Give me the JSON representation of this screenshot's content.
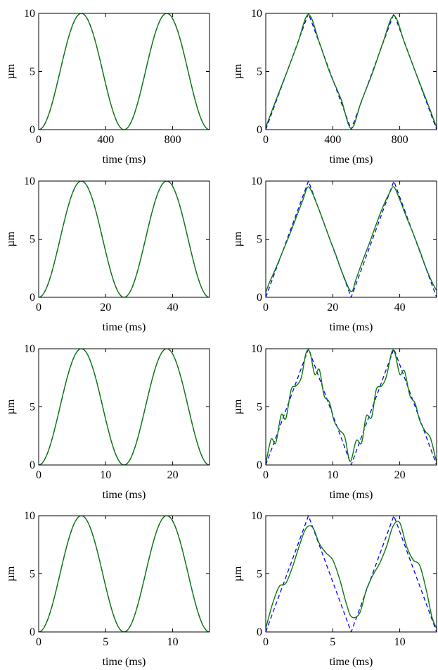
{
  "figure": {
    "colors": {
      "reference": "#0000ff",
      "response": "#0a7a0a",
      "axes": "#000000"
    }
  },
  "chart_data": [
    {
      "type": "line",
      "panel": "row1-left",
      "waveform": "cosine",
      "xlabel": "time (ms)",
      "ylabel": "µm",
      "xlim": [
        0,
        1020
      ],
      "ylim": [
        0,
        10
      ],
      "xticks": [
        0,
        400,
        800
      ],
      "yticks": [
        0,
        5,
        10
      ],
      "period": 510,
      "series": [
        {
          "style": "dashed-blue",
          "x": [
            0,
            127.5,
            255,
            382.5,
            510,
            637.5,
            765,
            892.5,
            1020
          ],
          "y": [
            0,
            5,
            10,
            5,
            0,
            5,
            10,
            5,
            0
          ]
        },
        {
          "style": "solid-green",
          "x": [
            0,
            127.5,
            255,
            382.5,
            510,
            637.5,
            765,
            892.5,
            1020
          ],
          "y": [
            0,
            5,
            10,
            5,
            0,
            5,
            10,
            5,
            0
          ]
        }
      ]
    },
    {
      "type": "line",
      "panel": "row1-right",
      "waveform": "triangle",
      "xlabel": "time (ms)",
      "ylabel": "µm",
      "xlim": [
        0,
        1020
      ],
      "ylim": [
        0,
        10
      ],
      "xticks": [
        0,
        400,
        800
      ],
      "yticks": [
        0,
        5,
        10
      ],
      "period": 510,
      "series": [
        {
          "style": "dashed-blue",
          "x": [
            0,
            255,
            510,
            765,
            1020
          ],
          "y": [
            0,
            10,
            0,
            10,
            0
          ]
        },
        {
          "style": "solid-green",
          "x": [
            0,
            60,
            130,
            190,
            255,
            320,
            380,
            450,
            510,
            570,
            640,
            700,
            765,
            830,
            890,
            960,
            1020
          ],
          "y": [
            0.2,
            2.5,
            5.1,
            7.4,
            9.9,
            7.5,
            5.0,
            2.6,
            0.1,
            2.4,
            5.0,
            7.5,
            9.8,
            7.4,
            5.1,
            2.5,
            0.2
          ]
        }
      ]
    },
    {
      "type": "line",
      "panel": "row2-left",
      "waveform": "cosine",
      "xlabel": "time (ms)",
      "ylabel": "µm",
      "xlim": [
        0,
        51
      ],
      "ylim": [
        0,
        10
      ],
      "xticks": [
        0,
        20,
        40
      ],
      "yticks": [
        0,
        5,
        10
      ],
      "period": 25.5,
      "series": [
        {
          "style": "dashed-blue",
          "x": [
            0,
            6.4,
            12.75,
            19.1,
            25.5,
            31.9,
            38.25,
            44.6,
            51
          ],
          "y": [
            0,
            5,
            10,
            5,
            0,
            5,
            10,
            5,
            0
          ]
        },
        {
          "style": "solid-green",
          "x": [
            0,
            6.4,
            12.75,
            19.1,
            25.5,
            31.9,
            38.25,
            44.6,
            51
          ],
          "y": [
            0,
            5,
            10,
            5,
            0,
            5,
            10,
            5,
            0
          ]
        }
      ]
    },
    {
      "type": "line",
      "panel": "row2-right",
      "waveform": "triangle",
      "xlabel": "time (ms)",
      "ylabel": "µm",
      "xlim": [
        0,
        51
      ],
      "ylim": [
        0,
        10
      ],
      "xticks": [
        0,
        20,
        40
      ],
      "yticks": [
        0,
        5,
        10
      ],
      "period": 25.5,
      "series": [
        {
          "style": "dashed-blue",
          "x": [
            0,
            12.75,
            25.5,
            38.25,
            51
          ],
          "y": [
            0,
            10,
            0,
            10,
            0
          ]
        },
        {
          "style": "solid-green",
          "x": [
            0,
            1,
            3,
            5,
            7,
            9,
            11,
            12.75,
            15,
            17,
            19,
            21,
            23,
            25.5,
            27,
            29,
            31,
            33,
            35,
            37,
            38.25,
            40,
            42,
            44,
            46,
            48,
            50,
            51
          ],
          "y": [
            0.4,
            1.2,
            2.5,
            3.9,
            5.3,
            6.8,
            8.3,
            9.5,
            8.2,
            6.7,
            5.1,
            3.6,
            2.0,
            0.5,
            1.6,
            3.2,
            4.7,
            6.3,
            7.8,
            9.0,
            9.5,
            8.4,
            6.9,
            5.5,
            4.0,
            2.4,
            1.1,
            0.6
          ]
        }
      ]
    },
    {
      "type": "line",
      "panel": "row3-left",
      "waveform": "cosine",
      "xlabel": "time (ms)",
      "ylabel": "µm",
      "xlim": [
        0,
        25.5
      ],
      "ylim": [
        0,
        10
      ],
      "xticks": [
        0,
        10,
        20
      ],
      "yticks": [
        0,
        5,
        10
      ],
      "period": 12.75,
      "series": [
        {
          "style": "dashed-blue",
          "x": [
            0,
            3.2,
            6.375,
            9.6,
            12.75,
            15.9,
            19.125,
            22.3,
            25.5
          ],
          "y": [
            0,
            5,
            10,
            5,
            0,
            5,
            10,
            5,
            0
          ]
        },
        {
          "style": "solid-green",
          "x": [
            0,
            3.2,
            6.375,
            9.6,
            12.75,
            15.9,
            19.125,
            22.3,
            25.5
          ],
          "y": [
            0,
            5,
            10,
            5,
            0,
            5,
            10,
            5,
            0
          ]
        }
      ]
    },
    {
      "type": "line",
      "panel": "row3-right",
      "waveform": "triangle",
      "xlabel": "time (ms)",
      "ylabel": "µm",
      "xlim": [
        0,
        25.5
      ],
      "ylim": [
        0,
        10
      ],
      "xticks": [
        0,
        10,
        20
      ],
      "yticks": [
        0,
        5,
        10
      ],
      "period": 12.75,
      "series": [
        {
          "style": "dashed-blue",
          "x": [
            0,
            6.375,
            12.75,
            19.125,
            25.5
          ],
          "y": [
            0,
            10,
            0,
            10,
            0
          ]
        },
        {
          "style": "solid-green",
          "x": [
            0,
            0.8,
            1.5,
            2.3,
            3.0,
            3.8,
            4.5,
            5.3,
            6.0,
            6.6,
            7.3,
            8.0,
            8.7,
            9.5,
            10.2,
            11.0,
            11.8,
            12.6,
            13.5,
            14.3,
            15.0,
            15.8,
            16.5,
            17.3,
            18.0,
            18.8,
            19.3,
            20.0,
            20.7,
            21.5,
            22.3,
            23.0,
            23.8,
            24.6,
            25.5
          ],
          "y": [
            0.1,
            2.2,
            1.9,
            4.3,
            4.0,
            6.5,
            6.8,
            7.5,
            9.6,
            9.7,
            7.8,
            8.2,
            6.0,
            5.4,
            3.8,
            3.0,
            2.4,
            0.3,
            2.1,
            1.9,
            4.2,
            4.1,
            6.5,
            6.8,
            7.6,
            9.7,
            9.6,
            7.8,
            8.1,
            6.0,
            5.3,
            3.8,
            2.9,
            2.3,
            0.2
          ]
        }
      ]
    },
    {
      "type": "line",
      "panel": "row4-left",
      "waveform": "cosine",
      "xlabel": "time (ms)",
      "ylabel": "µm",
      "xlim": [
        0,
        12.75
      ],
      "ylim": [
        0,
        10
      ],
      "xticks": [
        0,
        5,
        10
      ],
      "yticks": [
        0,
        5,
        10
      ],
      "period": 6.375,
      "series": [
        {
          "style": "dashed-blue",
          "x": [
            0,
            1.6,
            3.19,
            4.8,
            6.375,
            8.0,
            9.56,
            11.2,
            12.75
          ],
          "y": [
            0,
            5,
            10,
            5,
            0,
            5,
            10,
            5,
            0
          ]
        },
        {
          "style": "solid-green",
          "x": [
            0,
            1.6,
            3.19,
            4.8,
            6.375,
            8.0,
            9.56,
            11.2,
            12.75
          ],
          "y": [
            0,
            5,
            10,
            5,
            0,
            5,
            10,
            5,
            0
          ]
        }
      ]
    },
    {
      "type": "line",
      "panel": "row4-right",
      "waveform": "triangle",
      "xlabel": "time (ms)",
      "ylabel": "µm",
      "xlim": [
        0,
        12.75
      ],
      "ylim": [
        0,
        10
      ],
      "xticks": [
        0,
        5,
        10
      ],
      "yticks": [
        0,
        5,
        10
      ],
      "period": 6.375,
      "series": [
        {
          "style": "dashed-blue",
          "x": [
            0,
            3.19,
            6.375,
            9.56,
            12.75
          ],
          "y": [
            0,
            10,
            0,
            10,
            0
          ]
        },
        {
          "style": "solid-green",
          "x": [
            0,
            0.5,
            1.0,
            1.5,
            2.0,
            2.5,
            3.0,
            3.5,
            4.0,
            4.5,
            5.0,
            5.5,
            6.0,
            6.4,
            7.0,
            7.5,
            8.0,
            8.5,
            9.0,
            9.5,
            10.0,
            10.5,
            11.0,
            11.5,
            12.0,
            12.4,
            12.75
          ],
          "y": [
            0.3,
            2.4,
            3.9,
            4.2,
            5.6,
            7.4,
            8.9,
            9.0,
            7.6,
            6.8,
            6.2,
            4.6,
            2.5,
            1.3,
            1.6,
            3.6,
            4.9,
            5.9,
            7.3,
            9.1,
            9.4,
            7.4,
            6.2,
            5.7,
            3.5,
            1.3,
            0.3
          ]
        }
      ]
    }
  ]
}
